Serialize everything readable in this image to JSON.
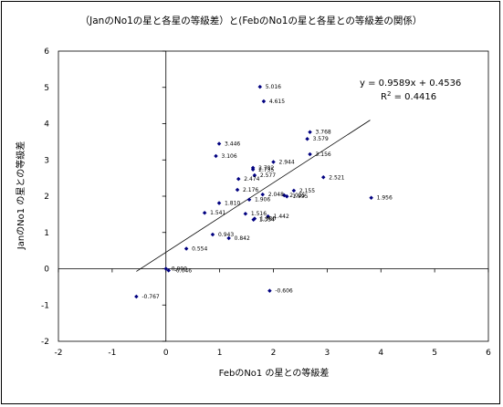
{
  "chart_data": {
    "type": "scatter",
    "title": "（JanのNo1の星と各星の等級差）と(FebのNo1の星と各星との等級差の関係）",
    "xlabel": "FebのNo1 の星との等級差",
    "ylabel": "JanのNo1 の星との等級差",
    "xlim": [
      -2,
      6
    ],
    "ylim": [
      -2,
      6
    ],
    "xticks": [
      "-2",
      "-1",
      "0",
      "1",
      "2",
      "3",
      "4",
      "5",
      "6"
    ],
    "yticks": [
      "-2",
      "-1",
      "0",
      "1",
      "2",
      "3",
      "4",
      "5",
      "6"
    ],
    "grid": false,
    "equation": "y = 0.9589x + 0.4536",
    "r2_prefix": "R",
    "r2_sup": "2",
    "r2_value": " = 0.4416",
    "trendline": {
      "slope": 0.9589,
      "intercept": 0.4536,
      "x_range": [
        -0.55,
        3.8
      ]
    },
    "points": [
      {
        "x": 1.75,
        "y": 5.016,
        "label": "5.016"
      },
      {
        "x": 1.82,
        "y": 4.615,
        "label": "4.615"
      },
      {
        "x": 2.68,
        "y": 3.768,
        "label": "3.768"
      },
      {
        "x": 2.63,
        "y": 3.579,
        "label": "3.579"
      },
      {
        "x": 0.99,
        "y": 3.446,
        "label": "3.446"
      },
      {
        "x": 2.68,
        "y": 3.156,
        "label": "3.156"
      },
      {
        "x": 0.93,
        "y": 3.106,
        "label": "3.106"
      },
      {
        "x": 2.0,
        "y": 2.944,
        "label": "2.944"
      },
      {
        "x": 1.62,
        "y": 2.782,
        "label": "2.782"
      },
      {
        "x": 1.62,
        "y": 2.735,
        "label": "2.735"
      },
      {
        "x": 1.65,
        "y": 2.577,
        "label": "2.577"
      },
      {
        "x": 2.93,
        "y": 2.521,
        "label": "2.521"
      },
      {
        "x": 1.35,
        "y": 2.474,
        "label": "2.474"
      },
      {
        "x": 1.33,
        "y": 2.176,
        "label": "2.176"
      },
      {
        "x": 2.38,
        "y": 2.155,
        "label": "2.155"
      },
      {
        "x": 1.8,
        "y": 2.048,
        "label": "2.048"
      },
      {
        "x": 2.2,
        "y": 2.025,
        "label": "2.025"
      },
      {
        "x": 2.25,
        "y": 1.995,
        "label": "1.995"
      },
      {
        "x": 3.82,
        "y": 1.956,
        "label": "1.956"
      },
      {
        "x": 1.55,
        "y": 1.906,
        "label": "1.906"
      },
      {
        "x": 0.99,
        "y": 1.81,
        "label": "1.810"
      },
      {
        "x": 0.72,
        "y": 1.541,
        "label": "1.541"
      },
      {
        "x": 1.48,
        "y": 1.516,
        "label": "1.516"
      },
      {
        "x": 1.9,
        "y": 1.442,
        "label": "1.442"
      },
      {
        "x": 1.63,
        "y": 1.354,
        "label": "1.354"
      },
      {
        "x": 1.65,
        "y": 1.38,
        "label": "1.380"
      },
      {
        "x": 0.87,
        "y": 0.943,
        "label": "0.943"
      },
      {
        "x": 1.17,
        "y": 0.842,
        "label": "0.842"
      },
      {
        "x": 0.38,
        "y": 0.554,
        "label": "0.554"
      },
      {
        "x": 0.0,
        "y": 0.0,
        "label": "0.000"
      },
      {
        "x": 0.05,
        "y": -0.046,
        "label": "-0.046"
      },
      {
        "x": 1.93,
        "y": -0.606,
        "label": "-0.606"
      },
      {
        "x": -0.55,
        "y": -0.767,
        "label": "-0.767"
      }
    ],
    "point_color": "#000080"
  }
}
